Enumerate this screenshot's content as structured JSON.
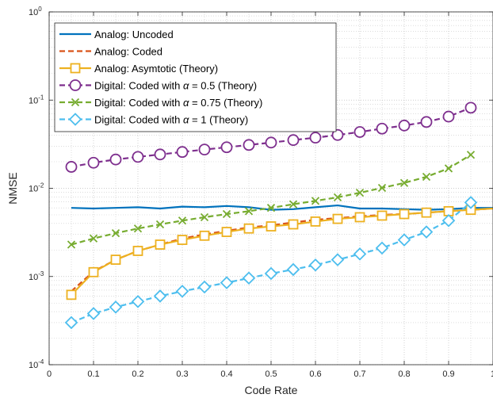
{
  "chart_data": {
    "type": "line",
    "title": "",
    "xlabel": "Code Rate",
    "ylabel": "NMSE",
    "xlim": [
      0,
      1
    ],
    "ylim": [
      0.0001,
      1
    ],
    "yscale": "log",
    "grid": true,
    "minor_grid": true,
    "legend_position": "top-left",
    "x_ticks": [
      "0",
      "0.1",
      "0.2",
      "0.3",
      "0.4",
      "0.5",
      "0.6",
      "0.7",
      "0.8",
      "0.9",
      "1"
    ],
    "y_ticks": [
      {
        "base": "10",
        "exp": "0"
      },
      {
        "base": "10",
        "exp": "-1"
      },
      {
        "base": "10",
        "exp": "-2"
      },
      {
        "base": "10",
        "exp": "-3"
      },
      {
        "base": "10",
        "exp": "-4"
      }
    ],
    "x": [
      0.05,
      0.1,
      0.15,
      0.2,
      0.25,
      0.3,
      0.35,
      0.4,
      0.45,
      0.5,
      0.55,
      0.6,
      0.65,
      0.7,
      0.75,
      0.8,
      0.85,
      0.9,
      0.95
    ],
    "series": [
      {
        "name": "Analog: Uncoded",
        "color": "#0072BD",
        "line_style": "solid",
        "marker": "none",
        "x": [
          0.05,
          0.1,
          0.15,
          0.2,
          0.25,
          0.3,
          0.35,
          0.4,
          0.45,
          0.5,
          0.55,
          0.6,
          0.65,
          0.7,
          0.75,
          0.8,
          0.85,
          0.9,
          0.95,
          1.0
        ],
        "values": [
          0.006,
          0.0059,
          0.006,
          0.0061,
          0.0059,
          0.0062,
          0.0061,
          0.0063,
          0.0061,
          0.0057,
          0.0058,
          0.0061,
          0.0064,
          0.0059,
          0.0059,
          0.0058,
          0.0057,
          0.0058,
          0.006,
          0.006
        ]
      },
      {
        "name": "Analog: Coded",
        "color": "#D95319",
        "line_style": "dashed",
        "marker": "none",
        "x": [
          0.05,
          0.1,
          0.15,
          0.2,
          0.25,
          0.3,
          0.35,
          0.4,
          0.45,
          0.5,
          0.55,
          0.6,
          0.65,
          0.7,
          0.75,
          0.8,
          0.85,
          0.9,
          0.95,
          1.0
        ],
        "values": [
          0.00068,
          0.00114,
          0.00155,
          0.00195,
          0.0023,
          0.0027,
          0.003,
          0.0033,
          0.0036,
          0.0038,
          0.0041,
          0.0044,
          0.0046,
          0.0048,
          0.005,
          0.0051,
          0.0053,
          0.0055,
          0.0057,
          0.0059
        ]
      },
      {
        "name": "Analog: Asymtotic (Theory)",
        "color": "#EDB120",
        "line_style": "solid",
        "marker": "square",
        "x": [
          0.05,
          0.1,
          0.15,
          0.2,
          0.25,
          0.3,
          0.35,
          0.4,
          0.45,
          0.5,
          0.55,
          0.6,
          0.65,
          0.7,
          0.75,
          0.8,
          0.85,
          0.9,
          0.95,
          1.0
        ],
        "values": [
          0.00062,
          0.00112,
          0.00155,
          0.00195,
          0.0023,
          0.0026,
          0.0029,
          0.0032,
          0.0035,
          0.0037,
          0.0039,
          0.0042,
          0.0045,
          0.0047,
          0.0049,
          0.0051,
          0.0053,
          0.0055,
          0.0057,
          0.0059
        ]
      },
      {
        "name_prefix": "Digital: Coded with ",
        "name_symbol": "α",
        "name_suffix": " = 0.5 (Theory)",
        "color": "#7E2F8E",
        "line_style": "dashed",
        "marker": "circle",
        "x": [
          0.05,
          0.1,
          0.15,
          0.2,
          0.25,
          0.3,
          0.35,
          0.4,
          0.45,
          0.5,
          0.55,
          0.6,
          0.65,
          0.7,
          0.75,
          0.8,
          0.85,
          0.9,
          0.95
        ],
        "values": [
          0.0175,
          0.0195,
          0.0212,
          0.0227,
          0.0242,
          0.0258,
          0.0275,
          0.0292,
          0.031,
          0.033,
          0.0352,
          0.0375,
          0.0402,
          0.0435,
          0.0475,
          0.0515,
          0.0565,
          0.065,
          0.082
        ]
      },
      {
        "name_prefix": "Digital: Coded with ",
        "name_symbol": "α",
        "name_suffix": " = 0.75 (Theory)",
        "color": "#77AC30",
        "line_style": "dashed",
        "marker": "x",
        "x": [
          0.05,
          0.1,
          0.15,
          0.2,
          0.25,
          0.3,
          0.35,
          0.4,
          0.45,
          0.5,
          0.55,
          0.6,
          0.65,
          0.7,
          0.75,
          0.8,
          0.85,
          0.9,
          0.95
        ],
        "values": [
          0.0023,
          0.0027,
          0.0031,
          0.0035,
          0.0039,
          0.0043,
          0.0047,
          0.0051,
          0.0055,
          0.006,
          0.0066,
          0.0072,
          0.0079,
          0.0089,
          0.0101,
          0.0115,
          0.0135,
          0.0168,
          0.024
        ]
      },
      {
        "name_prefix": "Digital: Coded with ",
        "name_symbol": "α",
        "name_suffix": " = 1 (Theory)",
        "color": "#4DBEEE",
        "line_style": "dashed",
        "marker": "diamond",
        "x": [
          0.05,
          0.1,
          0.15,
          0.2,
          0.25,
          0.3,
          0.35,
          0.4,
          0.45,
          0.5,
          0.55,
          0.6,
          0.65,
          0.7,
          0.75,
          0.8,
          0.85,
          0.9,
          0.95
        ],
        "values": [
          0.0003,
          0.00038,
          0.00045,
          0.00052,
          0.0006,
          0.00068,
          0.00076,
          0.00085,
          0.00096,
          0.00108,
          0.0012,
          0.00135,
          0.00155,
          0.0018,
          0.0021,
          0.0026,
          0.0032,
          0.0043,
          0.0069
        ]
      }
    ]
  }
}
